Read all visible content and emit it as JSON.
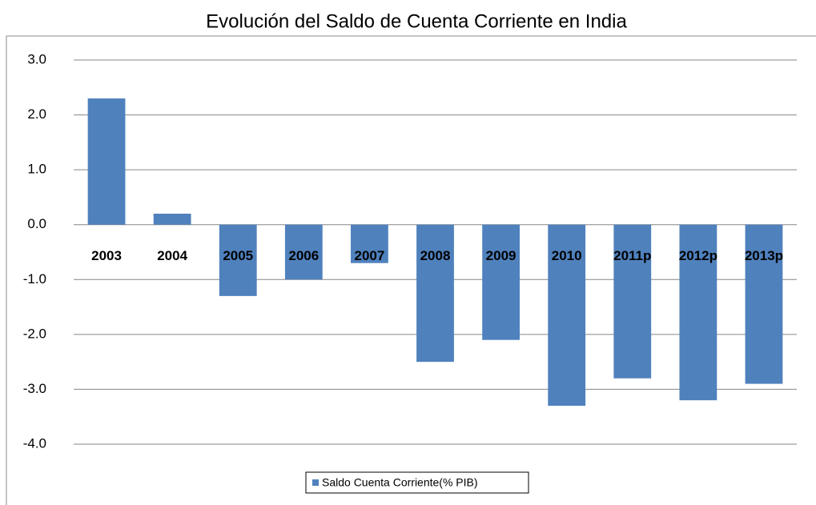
{
  "chart_data": {
    "type": "bar",
    "title": "Evolución del Saldo de Cuenta Corriente en India",
    "categories": [
      "2003",
      "2004",
      "2005",
      "2006",
      "2007",
      "2008",
      "2009",
      "2010",
      "2011p",
      "2012p",
      "2013p"
    ],
    "series": [
      {
        "name": "Saldo Cuenta Corriente(% PIB)",
        "color": "#4f81bd",
        "values": [
          2.3,
          0.2,
          -1.3,
          -1.0,
          -0.7,
          -2.5,
          -2.1,
          -3.3,
          -2.8,
          -3.2,
          -2.9
        ]
      }
    ],
    "ylim": [
      -4,
      3
    ],
    "yticks": [
      {
        "value": 3,
        "label": "3.0"
      },
      {
        "value": 2,
        "label": "2.0"
      },
      {
        "value": 1,
        "label": "1.0"
      },
      {
        "value": 0,
        "label": "0.0"
      },
      {
        "value": -1,
        "label": "-1.0"
      },
      {
        "value": -2,
        "label": "-2.0"
      },
      {
        "value": -3,
        "label": "-3.0"
      },
      {
        "value": -4,
        "label": "-4.0"
      }
    ],
    "grid": true,
    "legend": "bottom"
  }
}
